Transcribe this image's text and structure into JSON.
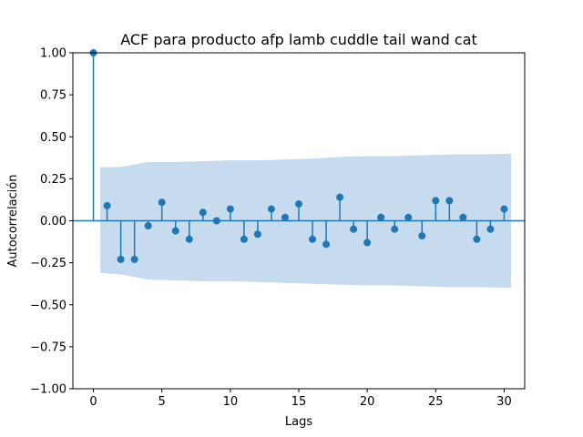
{
  "chart_data": {
    "type": "stem",
    "title": "ACF para producto afp lamb cuddle tail wand cat",
    "xlabel": "Lags",
    "ylabel": "Autocorrelación",
    "xlim": [
      -1.5,
      31.5
    ],
    "ylim": [
      -1.0,
      1.0
    ],
    "x_ticks": [
      0,
      5,
      10,
      15,
      20,
      25,
      30
    ],
    "x_tick_labels": [
      "0",
      "5",
      "10",
      "15",
      "20",
      "25",
      "30"
    ],
    "y_ticks": [
      -1.0,
      -0.75,
      -0.5,
      -0.25,
      0.0,
      0.25,
      0.5,
      0.75,
      1.0
    ],
    "y_tick_labels": [
      "−1.00",
      "−0.75",
      "−0.50",
      "−0.25",
      "0.00",
      "0.25",
      "0.50",
      "0.75",
      "1.00"
    ],
    "grid": false,
    "colors": {
      "stem": "#1f77b4",
      "confidence_band": "#c6dbed"
    },
    "lags": [
      0,
      1,
      2,
      3,
      4,
      5,
      6,
      7,
      8,
      9,
      10,
      11,
      12,
      13,
      14,
      15,
      16,
      17,
      18,
      19,
      20,
      21,
      22,
      23,
      24,
      25,
      26,
      27,
      28,
      29,
      30
    ],
    "values": [
      1.0,
      0.09,
      -0.23,
      -0.23,
      -0.03,
      0.11,
      -0.06,
      -0.11,
      0.05,
      0.0,
      0.07,
      -0.11,
      -0.08,
      0.07,
      0.02,
      0.1,
      -0.11,
      -0.14,
      0.14,
      -0.05,
      -0.13,
      0.02,
      -0.05,
      0.02,
      -0.09,
      0.12,
      0.12,
      0.02,
      -0.11,
      -0.05,
      0.07
    ],
    "confidence_band": {
      "lags": [
        0.5,
        2,
        4,
        6,
        8,
        10,
        12,
        14,
        16,
        18,
        20,
        22,
        24,
        26,
        28,
        30.5
      ],
      "upper": [
        0.32,
        0.32,
        0.35,
        0.35,
        0.355,
        0.36,
        0.36,
        0.365,
        0.37,
        0.38,
        0.385,
        0.385,
        0.39,
        0.395,
        0.395,
        0.4
      ],
      "lower": [
        -0.31,
        -0.32,
        -0.35,
        -0.355,
        -0.36,
        -0.36,
        -0.365,
        -0.37,
        -0.375,
        -0.38,
        -0.385,
        -0.385,
        -0.39,
        -0.395,
        -0.395,
        -0.4
      ]
    }
  }
}
